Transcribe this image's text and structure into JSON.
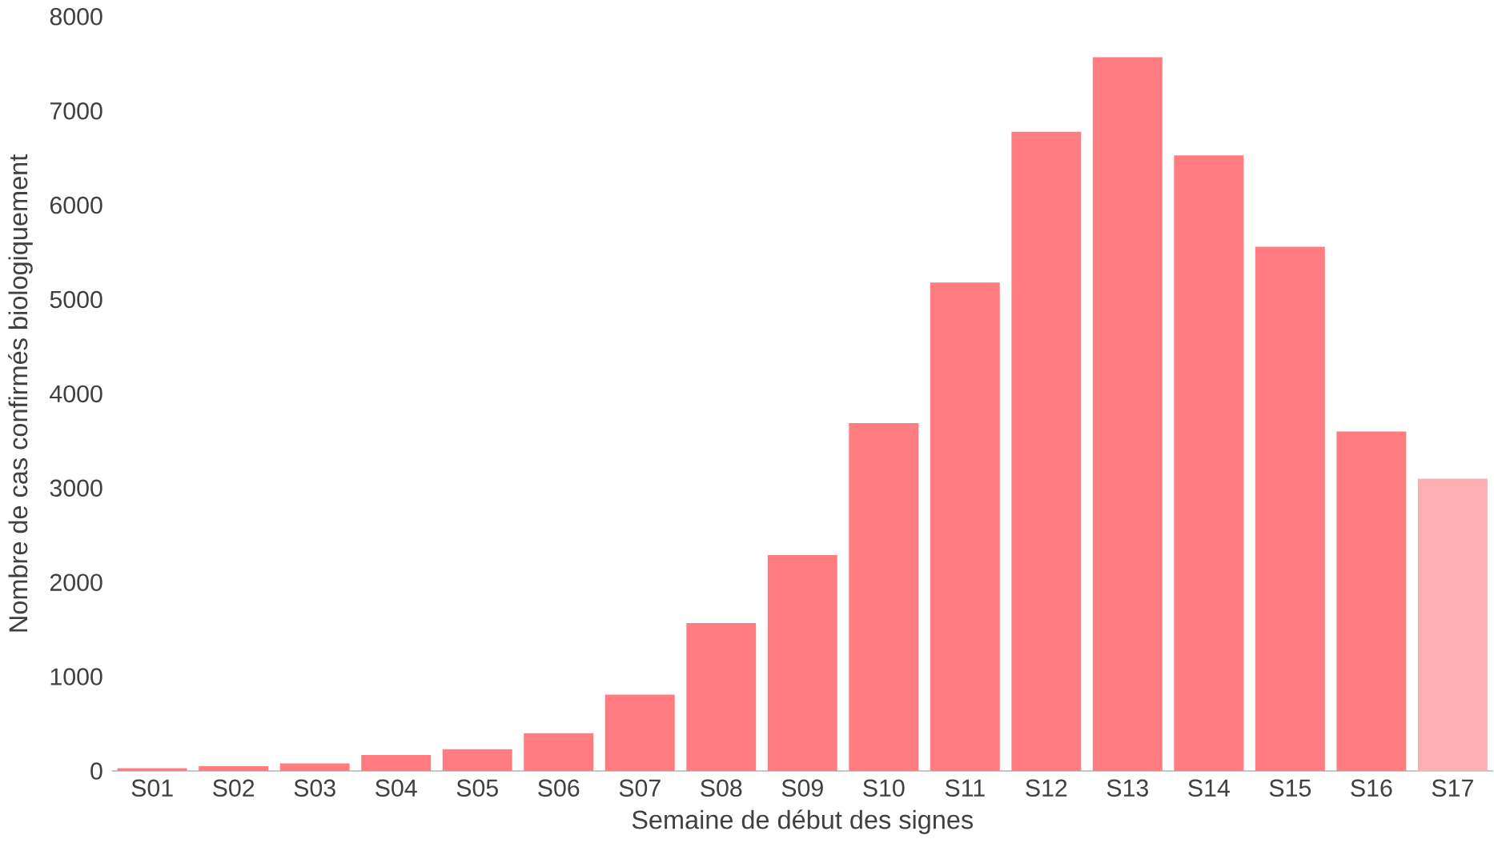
{
  "chart_data": {
    "type": "bar",
    "xlabel": "Semaine de début des signes",
    "ylabel": "Nombre de cas confirmés biologiquement",
    "categories": [
      "S01",
      "S02",
      "S03",
      "S04",
      "S05",
      "S06",
      "S07",
      "S08",
      "S09",
      "S10",
      "S11",
      "S12",
      "S13",
      "S14",
      "S15",
      "S16",
      "S17"
    ],
    "values": [
      30,
      50,
      80,
      170,
      230,
      400,
      810,
      1570,
      2290,
      3690,
      5180,
      6780,
      7570,
      6530,
      5560,
      3600,
      3100
    ],
    "colors": [
      "#ff7c80",
      "#ff7c80",
      "#ff7c80",
      "#ff7c80",
      "#ff7c80",
      "#ff7c80",
      "#ff7c80",
      "#ff7c80",
      "#ff7c80",
      "#ff7c80",
      "#ff7c80",
      "#ff7c80",
      "#ff7c80",
      "#ff7c80",
      "#ff7c80",
      "#ff7c80",
      "#fcaeb1"
    ],
    "ylim": [
      0,
      8000
    ],
    "yticks": [
      0,
      1000,
      2000,
      3000,
      4000,
      5000,
      6000,
      7000,
      8000
    ],
    "grid": false
  }
}
